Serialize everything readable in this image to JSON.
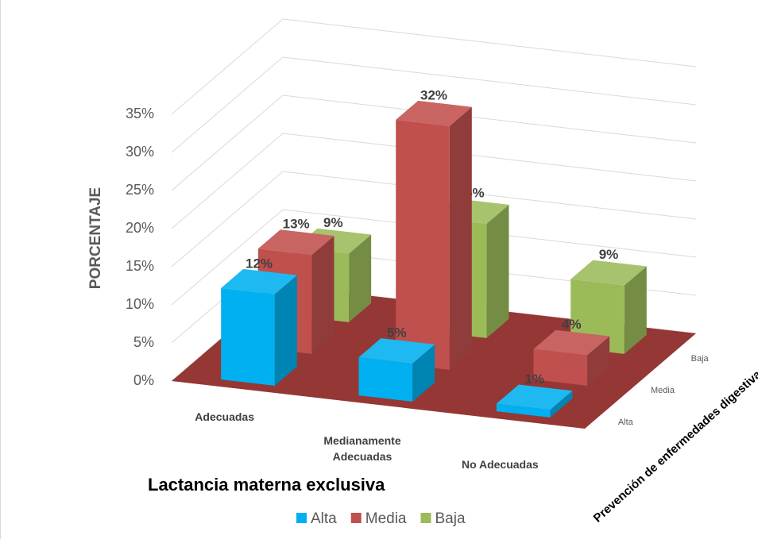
{
  "chart_data": {
    "type": "bar3d",
    "title": "Lactancia materna exclusiva",
    "y_label": "PORCENTAJE",
    "z_label": "Prevención de enfermedades digestivas",
    "categories": [
      "Adecuadas",
      "Medianamente Adecuadas",
      "No Adecuadas"
    ],
    "series": [
      {
        "name": "Alta",
        "color": "#00b0f0",
        "values": [
          12,
          5,
          1
        ],
        "value_labels": [
          "12%",
          "5%",
          "1%"
        ]
      },
      {
        "name": "Media",
        "color": "#c0504d",
        "values": [
          13,
          32,
          4
        ],
        "value_labels": [
          "13%",
          "32%",
          "4%"
        ]
      },
      {
        "name": "Baja",
        "color": "#9bbb59",
        "values": [
          9,
          15,
          9
        ],
        "value_labels": [
          "9%",
          "15%",
          "9%"
        ]
      }
    ],
    "ylim": [
      0,
      35
    ],
    "yticks": [
      {
        "value": 0,
        "label": "0%"
      },
      {
        "value": 5,
        "label": "5%"
      },
      {
        "value": 10,
        "label": "10%"
      },
      {
        "value": 15,
        "label": "15%"
      },
      {
        "value": 20,
        "label": "20%"
      },
      {
        "value": 25,
        "label": "25%"
      },
      {
        "value": 30,
        "label": "30%"
      },
      {
        "value": 35,
        "label": "35%"
      }
    ],
    "floor_color": "#953735",
    "grid": true,
    "legend": "bottom"
  }
}
